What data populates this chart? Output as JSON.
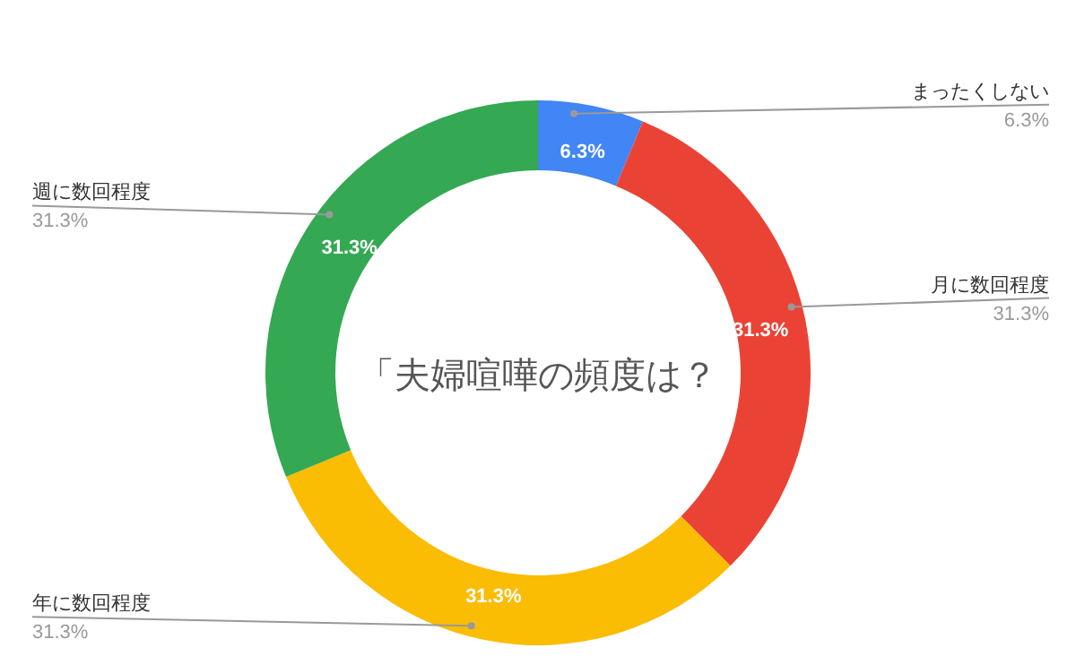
{
  "chart_data": {
    "type": "donut",
    "title": "「夫婦喧嘩の頻度は？",
    "categories": [
      "まったくしない",
      "月に数回程度",
      "年に数回程度",
      "週に数回程度"
    ],
    "values": [
      6.3,
      31.3,
      31.3,
      31.3
    ],
    "colors": [
      "#4285f4",
      "#ea4335",
      "#fbbc04",
      "#34a853"
    ],
    "value_labels": [
      "6.3%",
      "31.3%",
      "31.3%",
      "31.3%"
    ],
    "annotations": [
      "6.3%",
      "31.3%",
      "31.3%",
      "31.3%"
    ]
  }
}
